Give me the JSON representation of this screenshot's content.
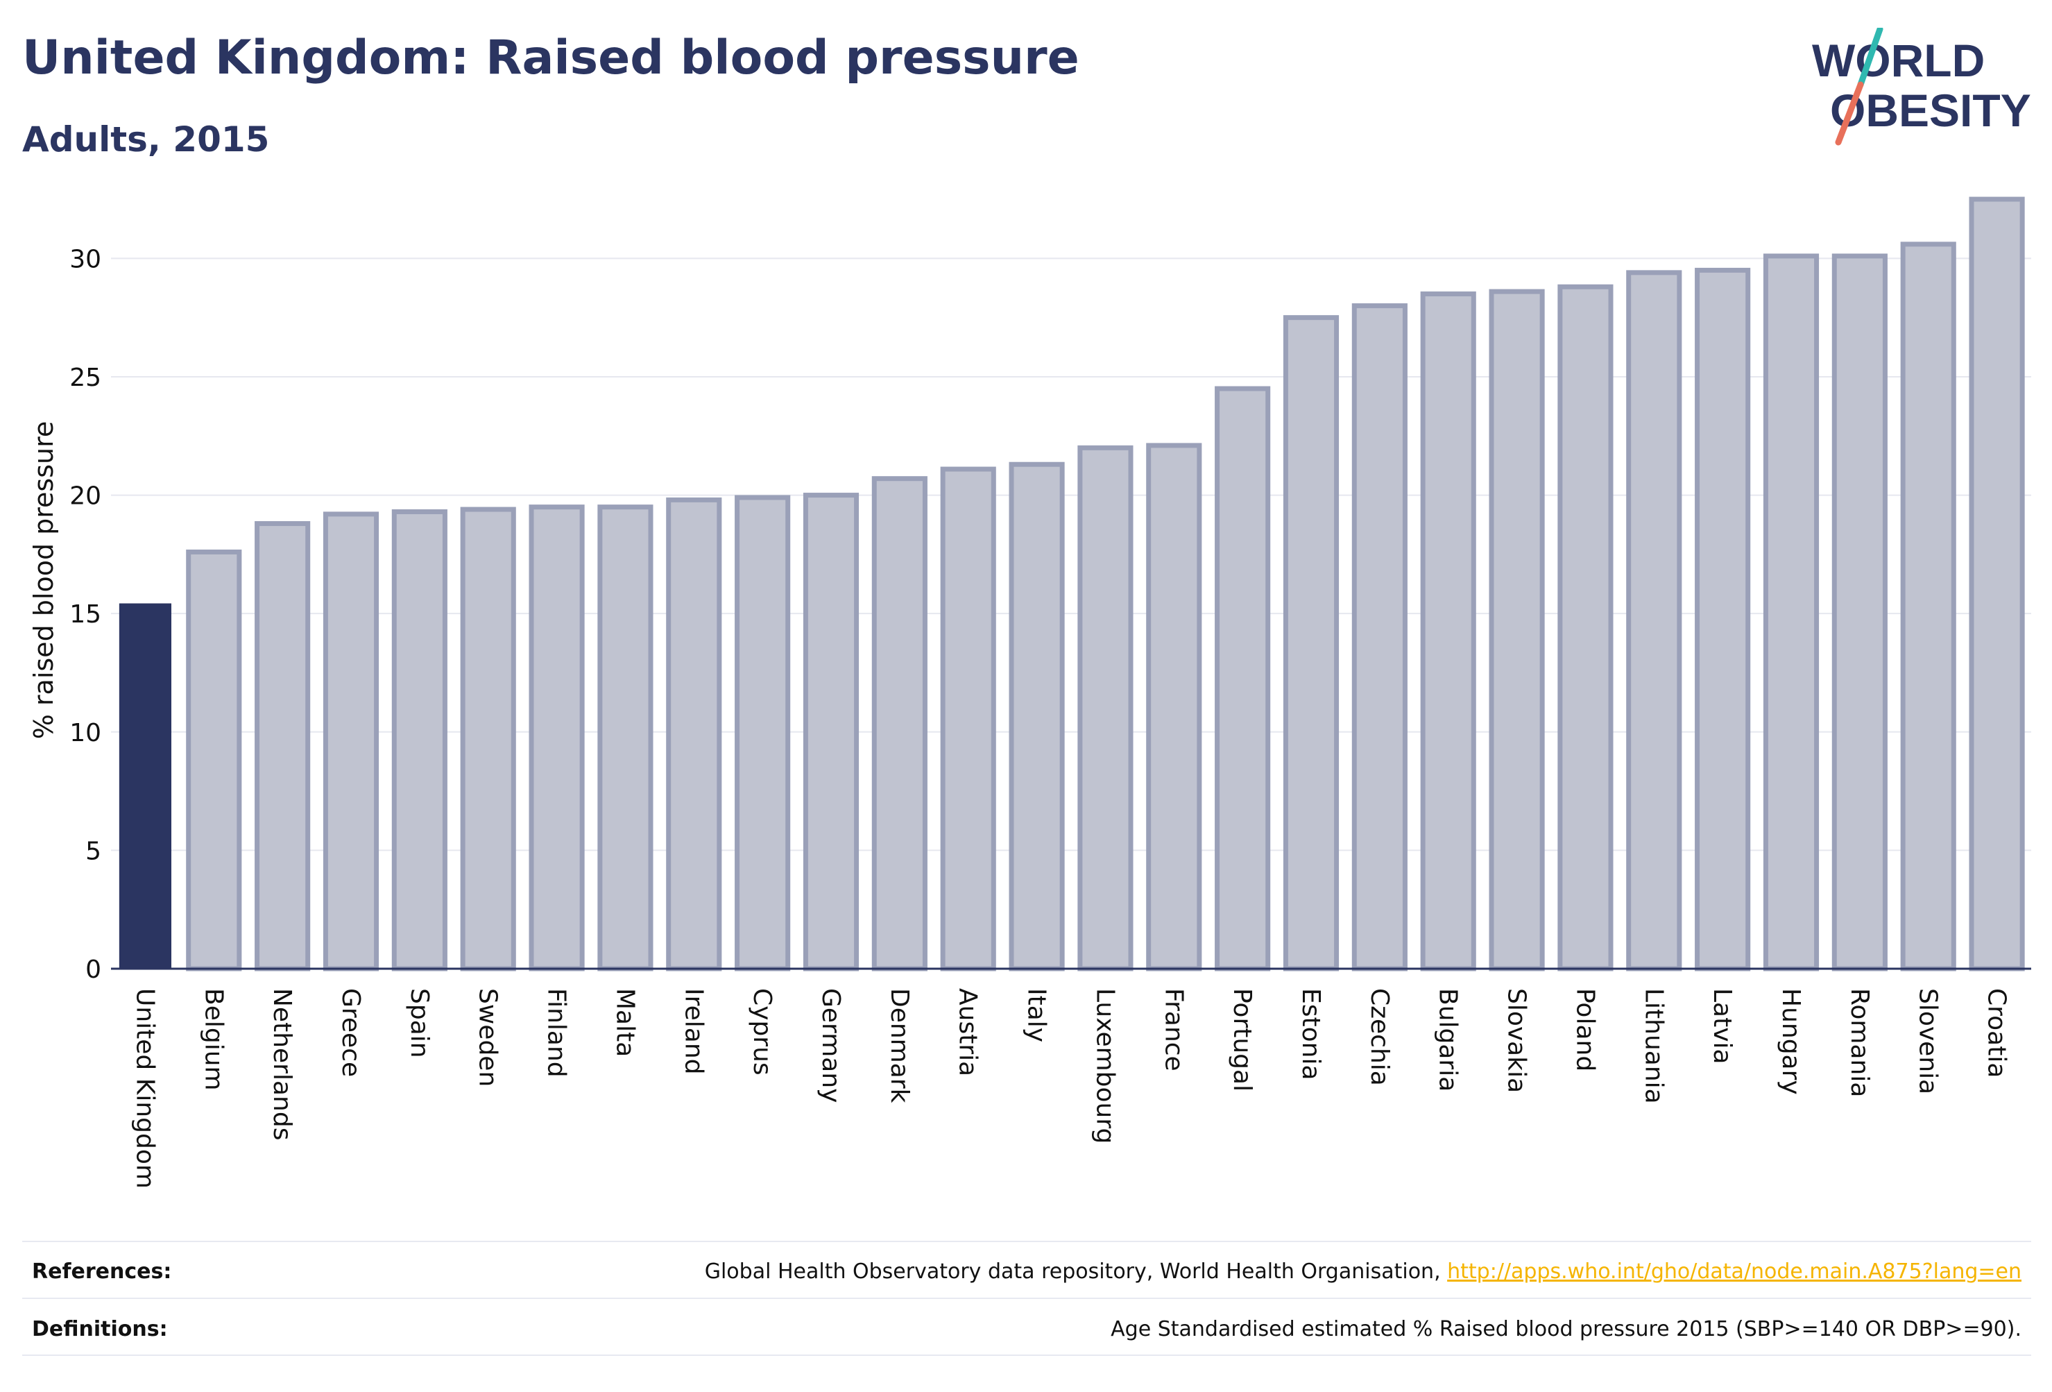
{
  "header": {
    "title": "United Kingdom: Raised blood pressure",
    "subtitle": "Adults, 2015"
  },
  "logo": {
    "line1": "WORLD",
    "line2": "OBESITY",
    "text_color": "#2b3561",
    "slash_top_color": "#2fb8b0",
    "slash_bottom_color": "#e8705a"
  },
  "chart_data": {
    "type": "bar",
    "ylabel": "% raised blood pressure",
    "xlabel": "",
    "ylim": [
      0,
      33
    ],
    "yticks": [
      0,
      5,
      10,
      15,
      20,
      25,
      30
    ],
    "grid": true,
    "highlight_color": "#2b3561",
    "bar_fill": "#c0c3d0",
    "bar_stroke": "#9aa0b8",
    "categories": [
      "United Kingdom",
      "Belgium",
      "Netherlands",
      "Greece",
      "Spain",
      "Sweden",
      "Finland",
      "Malta",
      "Ireland",
      "Cyprus",
      "Germany",
      "Denmark",
      "Austria",
      "Italy",
      "Luxembourg",
      "France",
      "Portugal",
      "Estonia",
      "Czechia",
      "Bulgaria",
      "Slovakia",
      "Poland",
      "Lithuania",
      "Latvia",
      "Hungary",
      "Romania",
      "Slovenia",
      "Croatia"
    ],
    "values": [
      15.4,
      17.6,
      18.8,
      19.2,
      19.3,
      19.4,
      19.5,
      19.5,
      19.8,
      19.9,
      20.0,
      20.7,
      21.1,
      21.3,
      22.0,
      22.1,
      24.5,
      27.5,
      28.0,
      28.5,
      28.6,
      28.8,
      29.4,
      29.5,
      30.1,
      30.1,
      30.6,
      32.5
    ],
    "highlight": "United Kingdom"
  },
  "footer": {
    "references_label": "References:",
    "references_text": "Global Health Observatory data repository, World Health Organisation, ",
    "references_link": "http://apps.who.int/gho/data/node.main.A875?lang=en",
    "definitions_label": "Definitions:",
    "definitions_text": "Age Standardised estimated % Raised blood pressure 2015 (SBP>=140 OR DBP>=90)."
  }
}
